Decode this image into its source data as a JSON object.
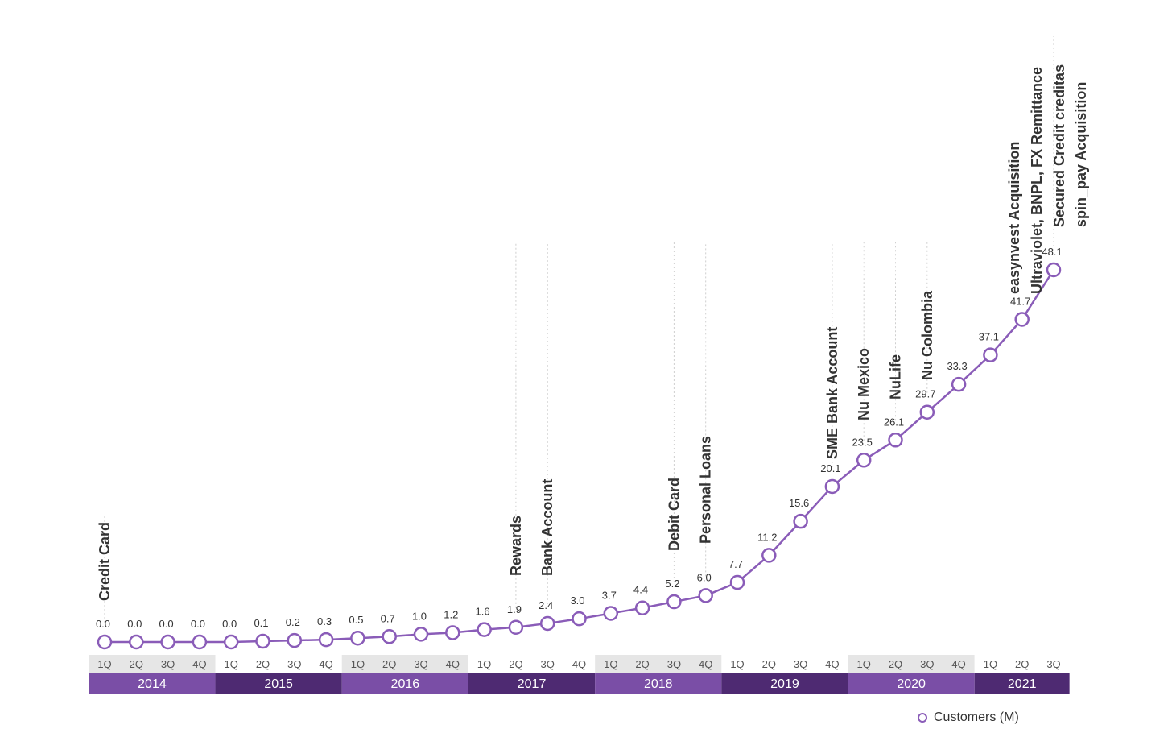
{
  "colors": {
    "line": "#8a5cb8",
    "year_band_light": "#7a4ea6",
    "year_band_dark": "#4e2a72",
    "quarter_band": "#e6e6e6",
    "label": "#333333"
  },
  "chart_data": {
    "type": "line",
    "title": "",
    "xlabel": "",
    "ylabel": "",
    "categories": [
      "1Q",
      "2Q",
      "3Q",
      "4Q",
      "1Q",
      "2Q",
      "3Q",
      "4Q",
      "1Q",
      "2Q",
      "3Q",
      "4Q",
      "1Q",
      "2Q",
      "3Q",
      "4Q",
      "1Q",
      "2Q",
      "3Q",
      "4Q",
      "1Q",
      "2Q",
      "3Q",
      "4Q",
      "1Q",
      "2Q",
      "3Q",
      "4Q",
      "1Q",
      "2Q",
      "3Q"
    ],
    "years": [
      {
        "label": "2014",
        "start": 0,
        "count": 4
      },
      {
        "label": "2015",
        "start": 4,
        "count": 4
      },
      {
        "label": "2016",
        "start": 8,
        "count": 4
      },
      {
        "label": "2017",
        "start": 12,
        "count": 4
      },
      {
        "label": "2018",
        "start": 16,
        "count": 4
      },
      {
        "label": "2019",
        "start": 20,
        "count": 4
      },
      {
        "label": "2020",
        "start": 24,
        "count": 4
      },
      {
        "label": "2021",
        "start": 28,
        "count": 3
      }
    ],
    "series": [
      {
        "name": "Customers (M)",
        "values": [
          0.0,
          0.0,
          0.0,
          0.0,
          0.0,
          0.1,
          0.2,
          0.3,
          0.5,
          0.7,
          1.0,
          1.2,
          1.6,
          1.9,
          2.4,
          3.0,
          3.7,
          4.4,
          5.2,
          6.0,
          7.7,
          11.2,
          15.6,
          20.1,
          23.5,
          26.1,
          29.7,
          33.3,
          37.1,
          41.7,
          48.1
        ],
        "labels": [
          "0.0",
          "0.0",
          "0.0",
          "0.0",
          "0.0",
          "0.1",
          "0.2",
          "0.3",
          "0.5",
          "0.7",
          "1.0",
          "1.2",
          "1.6",
          "1.9",
          "2.4",
          "3.0",
          "3.7",
          "4.4",
          "5.2",
          "6.0",
          "7.7",
          "11.2",
          "15.6",
          "20.1",
          "23.5",
          "26.1",
          "29.7",
          "33.3",
          "37.1",
          "41.7",
          "48.1"
        ]
      }
    ],
    "ylim": [
      0,
      48.1
    ],
    "legend": {
      "label": "Customers (M)",
      "position": "bottom-right"
    },
    "annotations": [
      {
        "index": 0,
        "lines": [
          "Credit Card"
        ]
      },
      {
        "index": 13,
        "lines": [
          "Rewards"
        ]
      },
      {
        "index": 14,
        "lines": [
          "Bank Account"
        ]
      },
      {
        "index": 18,
        "lines": [
          "Debit Card"
        ]
      },
      {
        "index": 19,
        "lines": [
          "Personal Loans"
        ]
      },
      {
        "index": 23,
        "lines": [
          "SME Bank Account"
        ]
      },
      {
        "index": 24,
        "lines": [
          "Nu Mexico"
        ]
      },
      {
        "index": 25,
        "lines": [
          "NuLife"
        ]
      },
      {
        "index": 26,
        "lines": [
          "Nu Colombia"
        ]
      },
      {
        "index": 30,
        "lines": [
          "easynvest Acquisition",
          "Ultraviolet, BNPL, FX Remittance",
          "Secured Credit creditas",
          "spin_pay Acquisition"
        ]
      }
    ]
  }
}
